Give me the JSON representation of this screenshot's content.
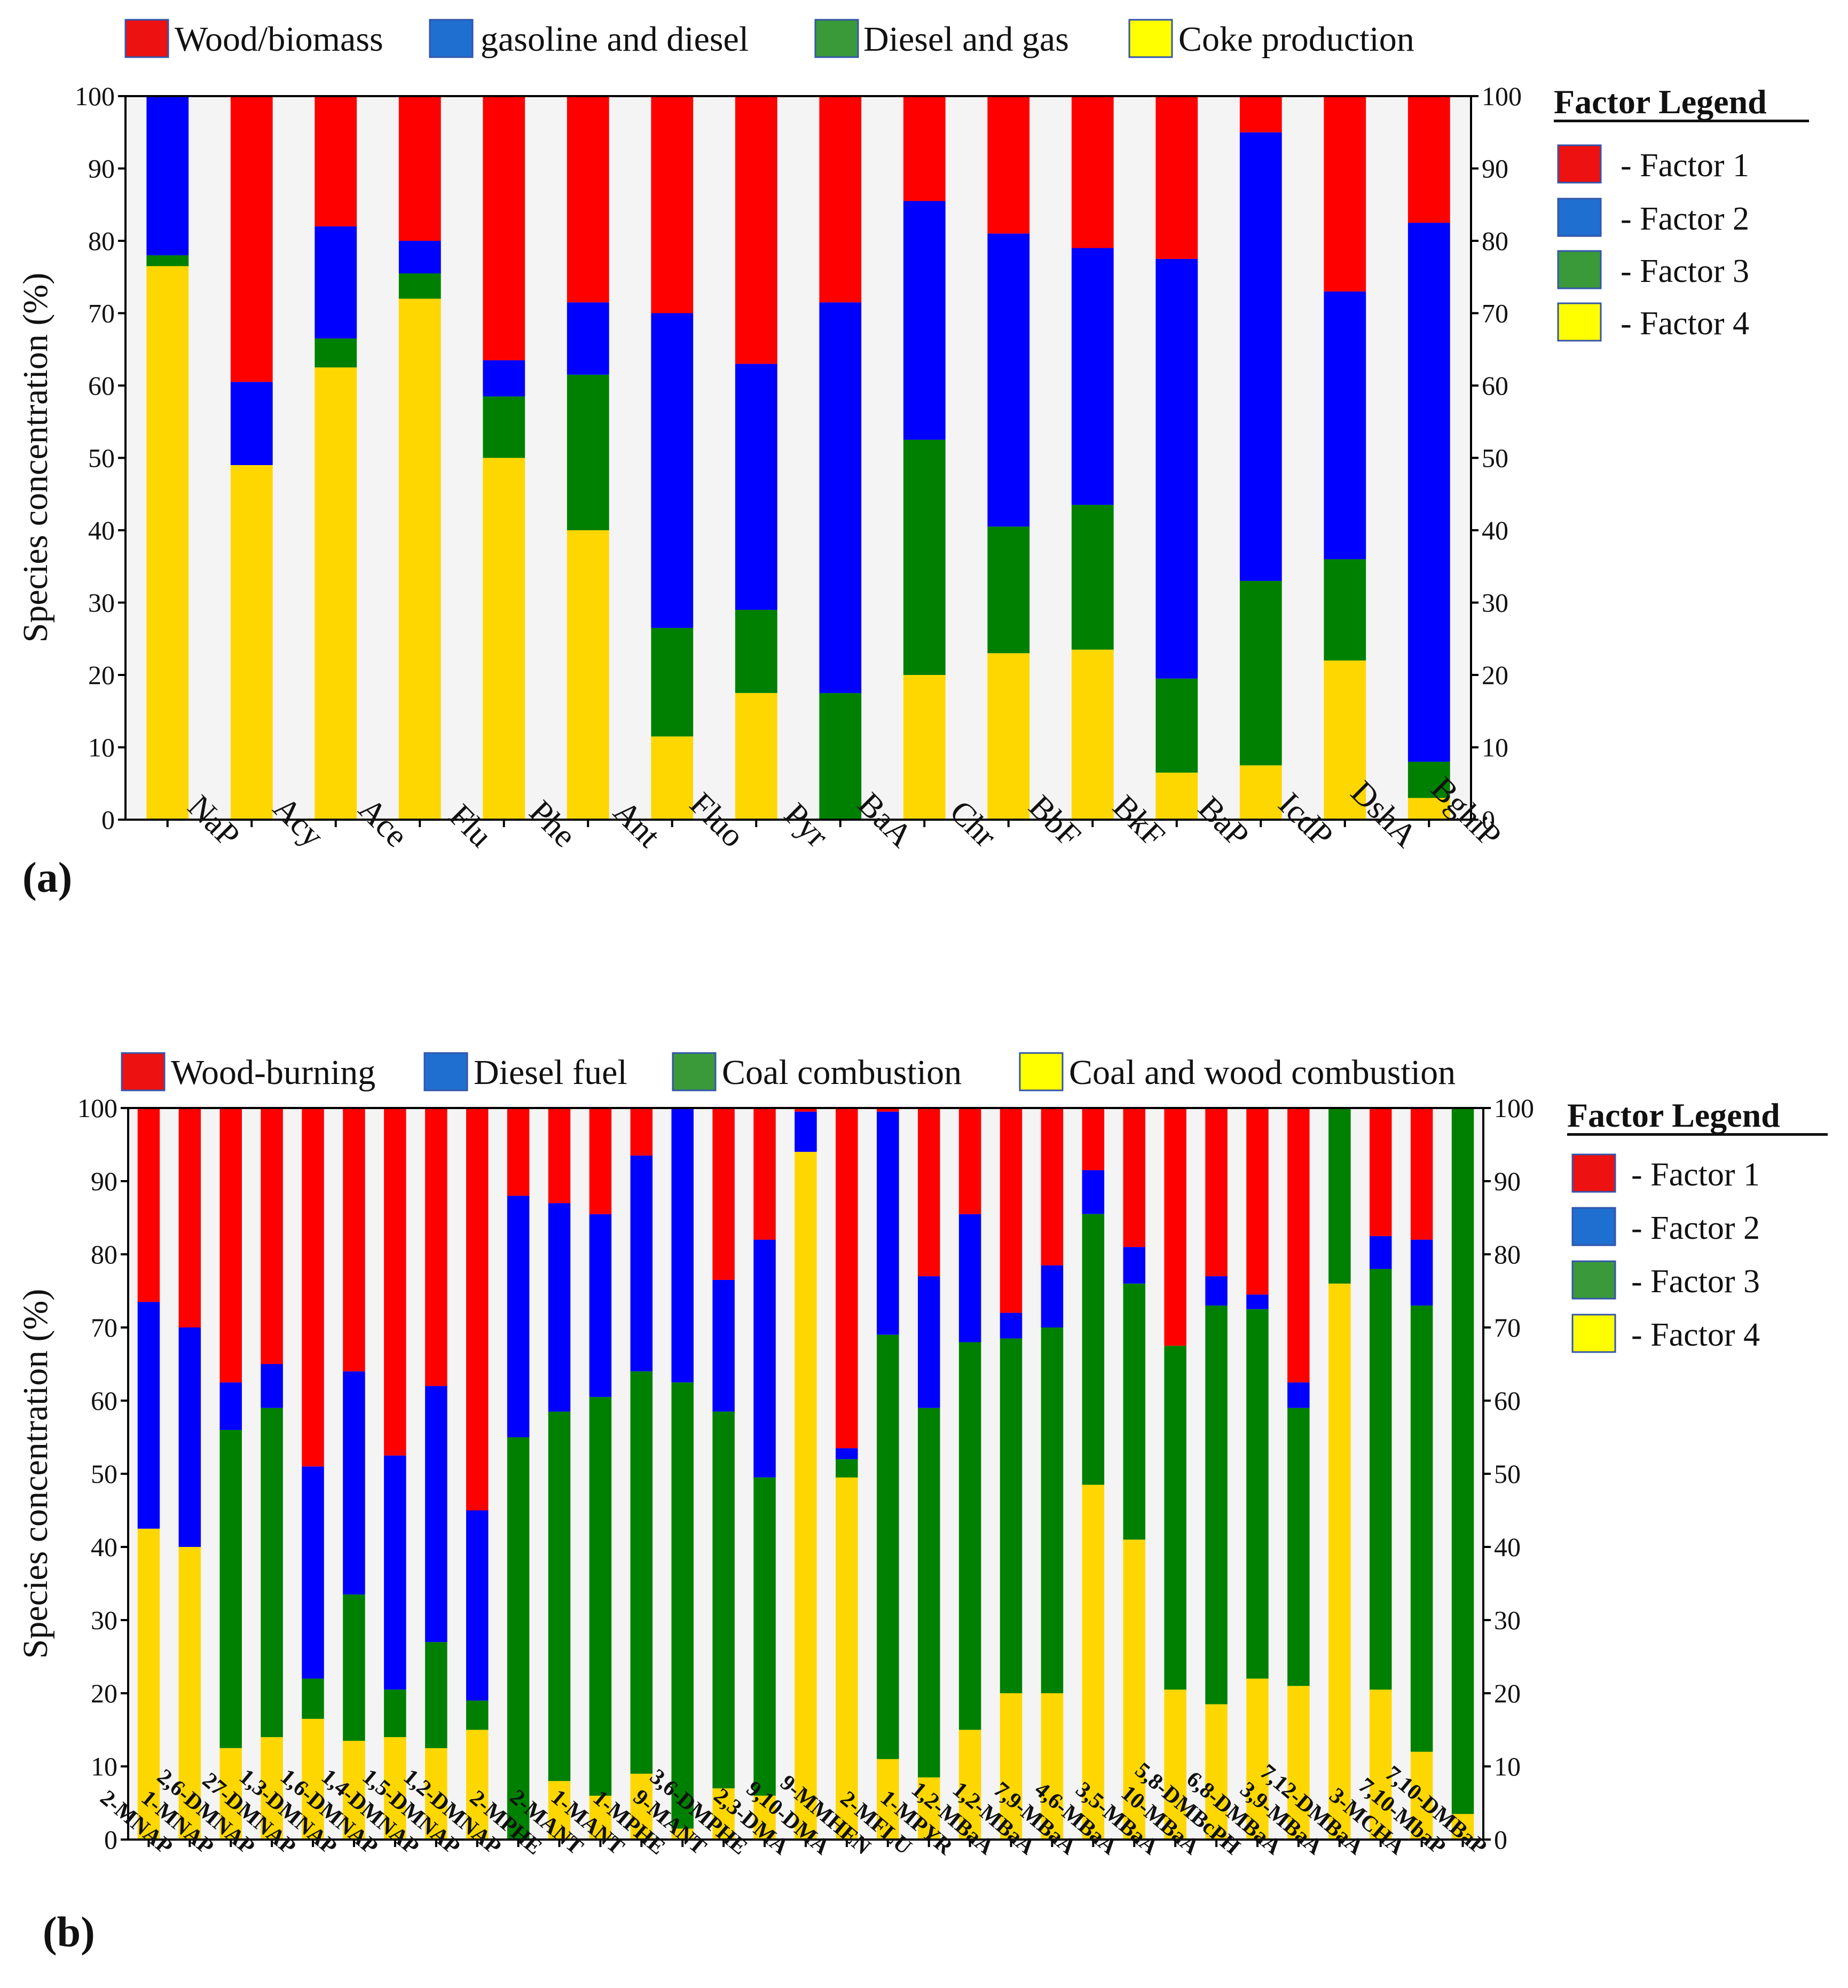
{
  "colors": {
    "factor1": "#ff0000",
    "factor2": "#0000ff",
    "factor3": "#008000",
    "factor4": "#ffd700",
    "legend1": "#ee1111",
    "legend2": "#1f6fd0",
    "legend3": "#3a9a3a",
    "legend4": "#ffff00",
    "plot_bg": "#f4f4f4"
  },
  "chart_data": [
    {
      "type": "bar",
      "stacked": true,
      "panel_label": "(a)",
      "ylabel": "Species concentration (%)",
      "ylim": [
        0,
        100
      ],
      "yticks": [
        "0",
        "10",
        "20",
        "30",
        "40",
        "50",
        "60",
        "70",
        "80",
        "90",
        "100"
      ],
      "top_legend": [
        "Wood/biomass",
        "gasoline and diesel",
        "Diesel and gas",
        "Coke production"
      ],
      "factor_legend_title": "Factor Legend",
      "factor_legend": [
        "- Factor 1",
        "- Factor 2",
        "- Factor 3",
        "- Factor 4"
      ],
      "categories": [
        "NaP",
        "Acy",
        "Ace",
        "Flu",
        "Phe",
        "Ant",
        "Fluo",
        "Pyr",
        "BaA",
        "Chr",
        "BbF",
        "BkF",
        "BaP",
        "IcdP",
        "DshA",
        "BghiP"
      ],
      "series": [
        {
          "name": "Factor 4",
          "values": [
            76.5,
            49,
            62.5,
            72,
            50,
            40,
            11.5,
            17.5,
            0,
            20,
            23,
            23.5,
            6.5,
            7.5,
            22,
            3
          ]
        },
        {
          "name": "Factor 3",
          "values": [
            1.5,
            0,
            4,
            3.5,
            8.5,
            21.5,
            15,
            11.5,
            17.5,
            32.5,
            17.5,
            20,
            13,
            25.5,
            14,
            5
          ]
        },
        {
          "name": "Factor 2",
          "values": [
            22,
            11.5,
            15.5,
            4.5,
            5,
            10,
            43.5,
            34,
            54,
            33,
            40.5,
            35.5,
            58,
            62,
            37,
            74.5
          ]
        },
        {
          "name": "Factor 1",
          "values": [
            0,
            39.5,
            18,
            20,
            36.5,
            28.5,
            30,
            37,
            28.5,
            14.5,
            19,
            21,
            22.5,
            5,
            27,
            17.5
          ]
        }
      ]
    },
    {
      "type": "bar",
      "stacked": true,
      "panel_label": "(b)",
      "ylabel": "Species concentration (%)",
      "ylim": [
        0,
        100
      ],
      "yticks": [
        "0",
        "10",
        "20",
        "30",
        "40",
        "50",
        "60",
        "70",
        "80",
        "90",
        "100"
      ],
      "top_legend": [
        "Wood-burning",
        "Diesel fuel",
        "Coal combustion",
        "Coal and wood combustion"
      ],
      "factor_legend_title": "Factor Legend",
      "factor_legend": [
        "- Factor 1",
        "- Factor 2",
        "- Factor 3",
        "- Factor 4"
      ],
      "categories": [
        "2-MNAP",
        "1-MNAP",
        "2,6-DMNAP",
        "27-DMNAP",
        "1,3-DMNAP",
        "1,6-DMNAP",
        "1,4-DMNAP",
        "1,5-DMNAP",
        "1,2-DMNAP",
        "2-MPHE",
        "2-MANT",
        "1-MANT",
        "1-MPHE",
        "9-MANT",
        "3,6-DMPHE",
        "2,3-DMA",
        "9,10-DMA",
        "9-MMHEN",
        "2-MFLU",
        "1-MPYR",
        "1,2-MBaA",
        "1,2-MBaA",
        "7,9-MBaA",
        "4,6-MBaA",
        "3,5-MBaA",
        "10-MBaA",
        "5,8-DMBcPH",
        "6,8-DMBaA",
        "3,9-MBaA",
        "7,12-DMBaA",
        "3-MCHA",
        "7,10-MbaP",
        "7,10-DMBaP"
      ],
      "series": [
        {
          "name": "Factor 4",
          "values": [
            42.5,
            40,
            12.5,
            14,
            16.5,
            13.5,
            14,
            12.5,
            15,
            0,
            8,
            6,
            9,
            1.5,
            7,
            6,
            94,
            49.5,
            11,
            8.5,
            15,
            20,
            20,
            48.5,
            41,
            20.5,
            18.5,
            22,
            21,
            76,
            20.5,
            12,
            3.5
          ]
        },
        {
          "name": "Factor 3",
          "values": [
            0,
            0,
            43.5,
            45,
            5.5,
            20,
            6.5,
            14.5,
            4,
            55,
            50.5,
            54.5,
            55,
            61,
            51.5,
            43.5,
            0,
            2.5,
            58,
            50.5,
            53,
            48.5,
            50,
            37,
            35,
            47,
            54.5,
            50.5,
            38,
            24,
            57.5,
            61,
            96.5
          ]
        },
        {
          "name": "Factor 2",
          "values": [
            31,
            30,
            6.5,
            6,
            29,
            30.5,
            32,
            35,
            26,
            33,
            28.5,
            25,
            29.5,
            37.5,
            18,
            32.5,
            5.5,
            1.5,
            30.5,
            18,
            17.5,
            3.5,
            8.5,
            6,
            5,
            0,
            4,
            2,
            3.5,
            0,
            4.5,
            9,
            0
          ]
        },
        {
          "name": "Factor 1",
          "values": [
            26.5,
            30,
            37.5,
            35,
            49,
            36,
            47.5,
            38,
            55,
            12,
            13,
            14.5,
            6.5,
            0,
            23.5,
            18,
            0.5,
            46.5,
            0.5,
            23,
            14.5,
            28,
            21.5,
            8.5,
            19,
            32.5,
            23,
            25.5,
            37.5,
            0,
            17.5,
            18,
            0
          ]
        }
      ]
    }
  ]
}
